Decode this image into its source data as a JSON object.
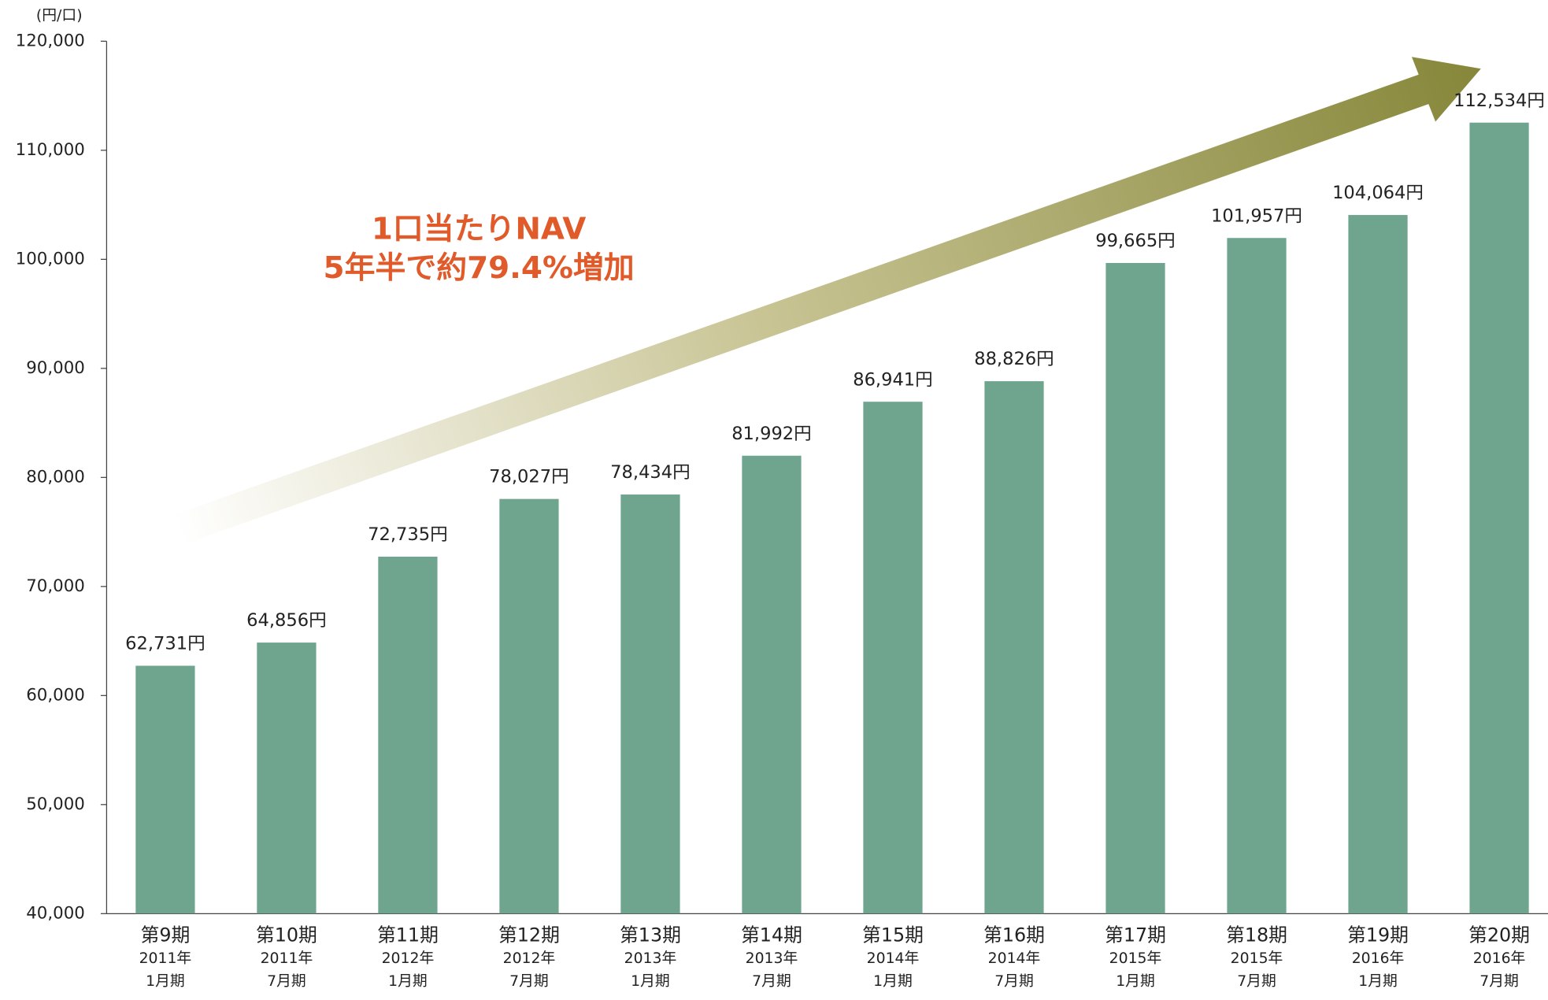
{
  "chart_data": {
    "type": "bar",
    "unit_label": "(円/口)",
    "annotation": [
      "1口当たりNAV",
      "5年半で約79.4%増加"
    ],
    "categories": [
      [
        "第9期",
        "2011年",
        "1月期"
      ],
      [
        "第10期",
        "2011年",
        "7月期"
      ],
      [
        "第11期",
        "2012年",
        "1月期"
      ],
      [
        "第12期",
        "2012年",
        "7月期"
      ],
      [
        "第13期",
        "2013年",
        "1月期"
      ],
      [
        "第14期",
        "2013年",
        "7月期"
      ],
      [
        "第15期",
        "2014年",
        "1月期"
      ],
      [
        "第16期",
        "2014年",
        "7月期"
      ],
      [
        "第17期",
        "2015年",
        "1月期"
      ],
      [
        "第18期",
        "2015年",
        "7月期"
      ],
      [
        "第19期",
        "2016年",
        "1月期"
      ],
      [
        "第20期",
        "2016年",
        "7月期"
      ]
    ],
    "values": [
      62731,
      64856,
      72735,
      78027,
      78434,
      81992,
      86941,
      88826,
      99665,
      101957,
      104064,
      112534
    ],
    "value_labels": [
      "62,731円",
      "64,856円",
      "72,735円",
      "78,027円",
      "78,434円",
      "81,992円",
      "86,941円",
      "88,826円",
      "99,665円",
      "101,957円",
      "104,064円",
      "112,534円"
    ],
    "color": "#6fa58e",
    "ylim": [
      40000,
      120000
    ],
    "yticks": [
      {
        "value": 40000,
        "label": "40,000"
      },
      {
        "value": 50000,
        "label": "50,000"
      },
      {
        "value": 60000,
        "label": "60,000"
      },
      {
        "value": 70000,
        "label": "70,000"
      },
      {
        "value": 80000,
        "label": "80,000"
      },
      {
        "value": 90000,
        "label": "90,000"
      },
      {
        "value": 100000,
        "label": "100,000"
      },
      {
        "value": 110000,
        "label": "110,000"
      },
      {
        "value": 120000,
        "label": "120,000"
      }
    ],
    "grid": false
  }
}
